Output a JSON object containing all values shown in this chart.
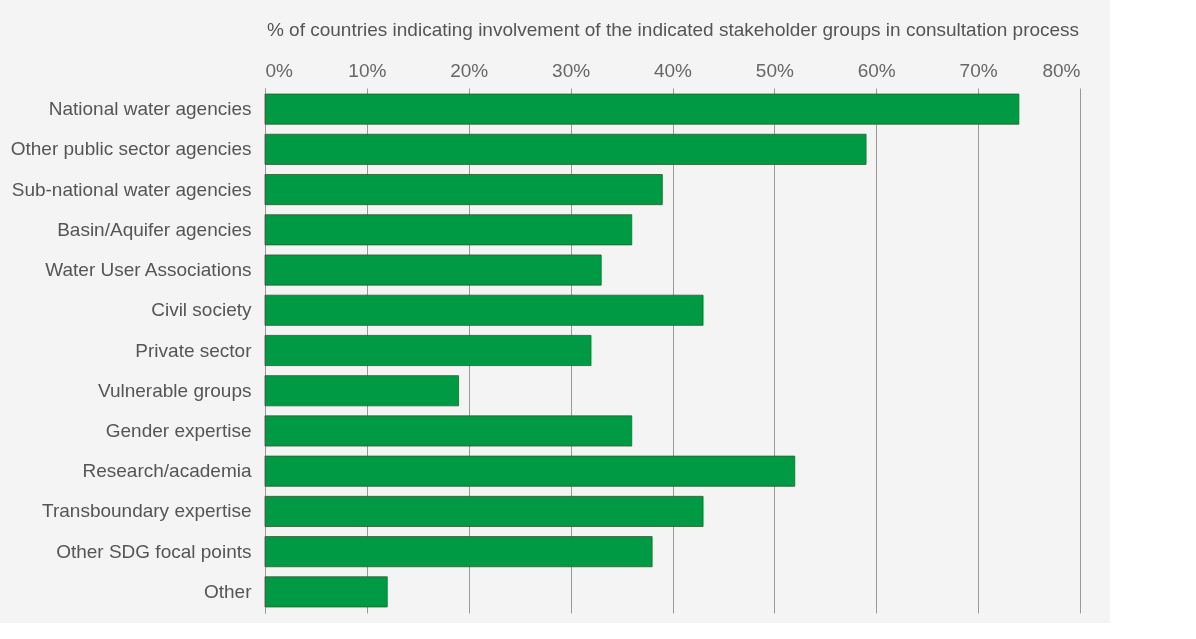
{
  "chart_data": {
    "type": "bar",
    "orientation": "horizontal",
    "xlabel": "% of countries indicating involvement of the indicated stakeholder groups in consultation process",
    "categories": [
      "National water agencies",
      "Other public sector agencies",
      "Sub-national water agencies",
      "Basin/Aquifer agencies",
      "Water User Associations",
      "Civil society",
      "Private sector",
      "Vulnerable groups",
      "Gender expertise",
      "Research/academia",
      "Transboundary expertise",
      "Other SDG focal points",
      "Other"
    ],
    "values": [
      74,
      59,
      39,
      36,
      33,
      43,
      32,
      19,
      36,
      52,
      43,
      38,
      12
    ],
    "color": "#009a44",
    "xlim": [
      0,
      80
    ],
    "xticks": [
      {
        "value": 0,
        "label": "0%"
      },
      {
        "value": 10,
        "label": "10%"
      },
      {
        "value": 20,
        "label": "20%"
      },
      {
        "value": 30,
        "label": "30%"
      },
      {
        "value": 40,
        "label": "40%"
      },
      {
        "value": 50,
        "label": "50%"
      },
      {
        "value": 60,
        "label": "60%"
      },
      {
        "value": 70,
        "label": "70%"
      },
      {
        "value": 80,
        "label": "80%"
      }
    ],
    "grid": "x"
  }
}
